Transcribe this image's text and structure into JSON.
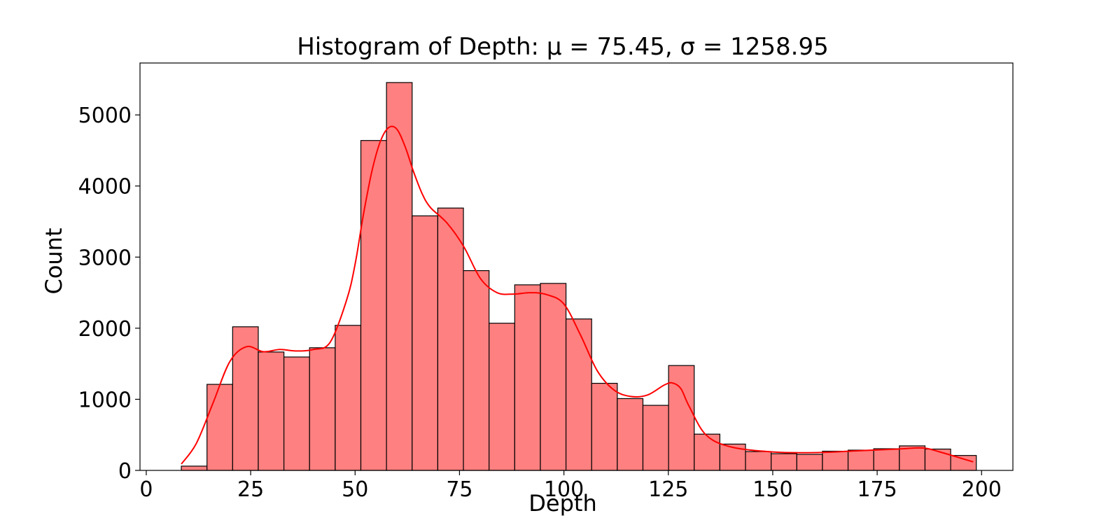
{
  "chart_data": {
    "type": "bar",
    "subtype": "histogram-with-kde",
    "title": "Histogram of Depth: μ = 75.45, σ = 1258.95",
    "xlabel": "Depth",
    "ylabel": "Count",
    "xlim": [
      -1.5,
      207.5
    ],
    "ylim": [
      0,
      5730
    ],
    "x_ticks": [
      0,
      25,
      50,
      75,
      100,
      125,
      150,
      175,
      200
    ],
    "y_ticks": [
      0,
      1000,
      2000,
      3000,
      4000,
      5000
    ],
    "grid": false,
    "legend": "none",
    "bin_start": 8.4,
    "bin_width": 6.14,
    "values": [
      60,
      1210,
      2020,
      1665,
      1595,
      1725,
      2040,
      4640,
      5455,
      3580,
      3690,
      2810,
      2070,
      2610,
      2630,
      2130,
      1225,
      1010,
      915,
      1475,
      510,
      370,
      265,
      235,
      225,
      270,
      285,
      305,
      345,
      300,
      210
    ],
    "kde": {
      "x": [
        8.4,
        12,
        16,
        20,
        24,
        28,
        32,
        36,
        40,
        44,
        48,
        50,
        52,
        54,
        56,
        58,
        60,
        62,
        64,
        66,
        68,
        72,
        76,
        80,
        84,
        88,
        92,
        96,
        100,
        104,
        108,
        112,
        116,
        120,
        124,
        126,
        128,
        130,
        134,
        140,
        150,
        160,
        170,
        180,
        186,
        190,
        194,
        198
      ],
      "y": [
        90,
        380,
        950,
        1530,
        1740,
        1670,
        1700,
        1680,
        1700,
        1800,
        2400,
        2900,
        3600,
        4200,
        4620,
        4820,
        4800,
        4550,
        4200,
        3900,
        3700,
        3480,
        3150,
        2700,
        2500,
        2480,
        2500,
        2470,
        2340,
        1900,
        1400,
        1130,
        1040,
        1060,
        1200,
        1230,
        1150,
        900,
        500,
        330,
        260,
        250,
        275,
        300,
        315,
        260,
        190,
        120
      ]
    },
    "colors": {
      "bar_fill": "#ff8080",
      "bar_edge": "#000000",
      "kde_line": "#ff0000"
    }
  }
}
